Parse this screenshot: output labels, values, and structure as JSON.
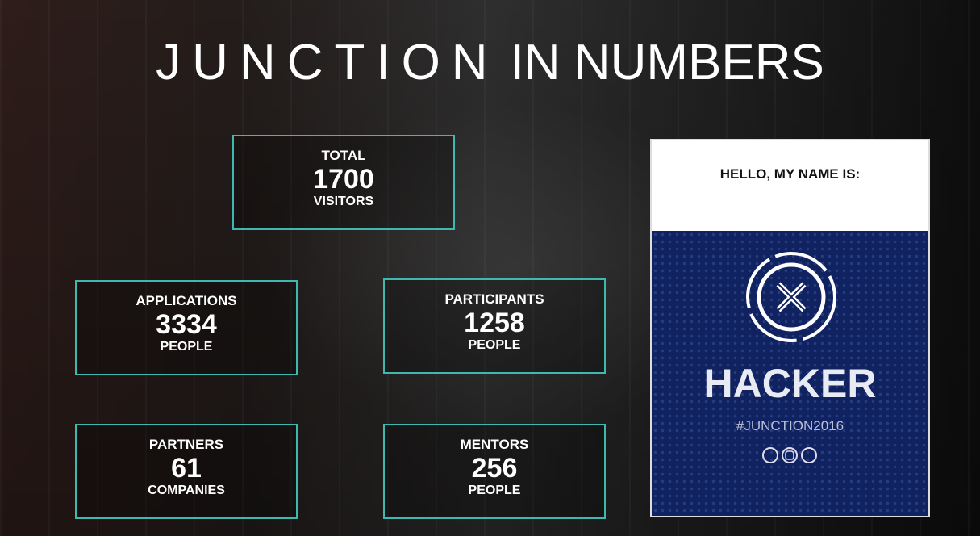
{
  "title": {
    "brand": "JUNCTION",
    "rest": "IN NUMBERS"
  },
  "stats": [
    {
      "label": "TOTAL",
      "value": 1700,
      "unit": "VISITORS"
    },
    {
      "label": "APPLICATIONS",
      "value": 3334,
      "unit": "PEOPLE"
    },
    {
      "label": "PARTICIPANTS",
      "value": 1258,
      "unit": "PEOPLE"
    },
    {
      "label": "PARTNERS",
      "value": 61,
      "unit": "COMPANIES"
    },
    {
      "label": "MENTORS",
      "value": 256,
      "unit": "PEOPLE"
    }
  ],
  "badge": {
    "greeting": "HELLO, MY NAME IS:",
    "role": "HACKER",
    "hashtag": "#JUNCTION2016"
  }
}
